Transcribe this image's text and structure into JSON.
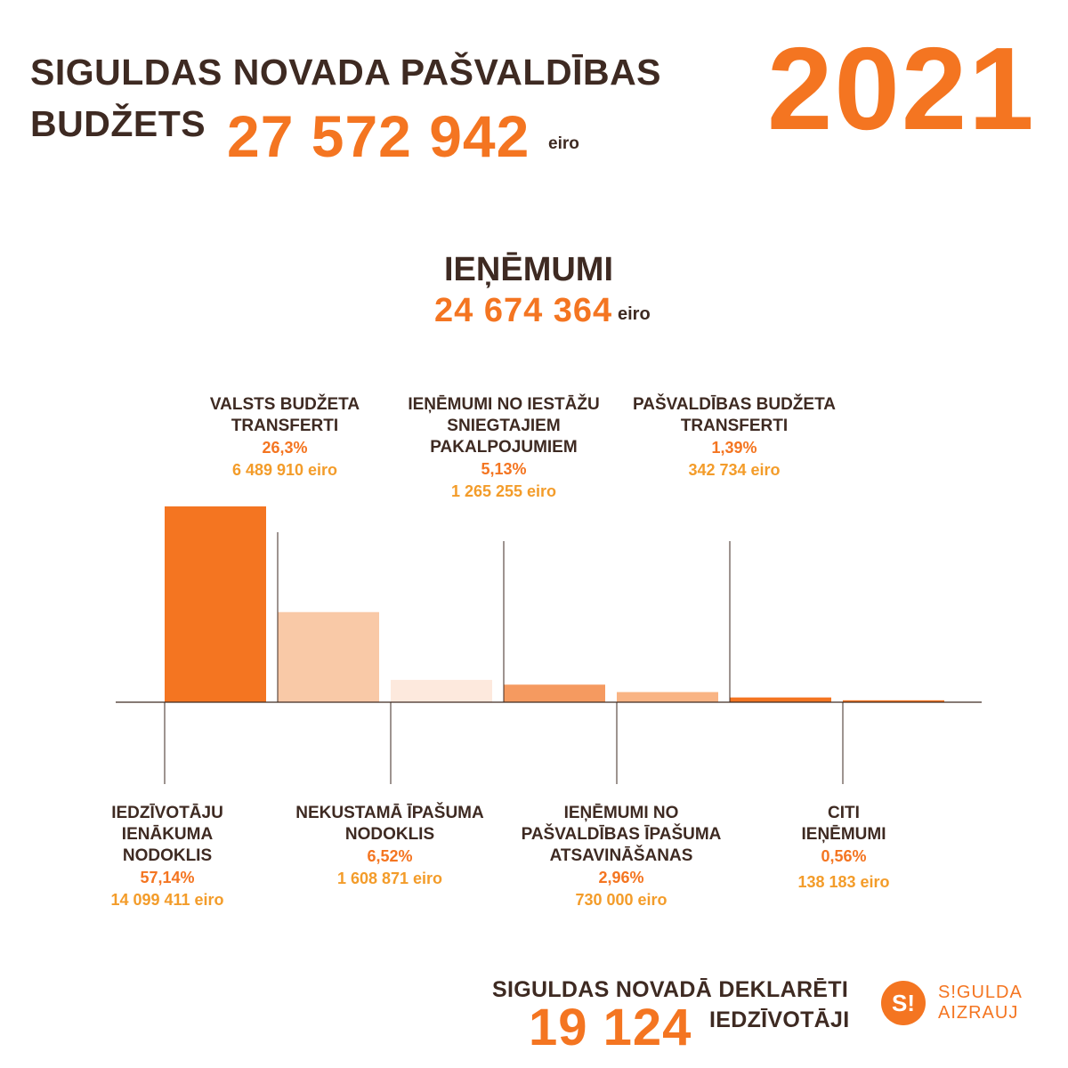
{
  "header": {
    "title_line1": "SIGULDAS NOVADA PAŠVALDĪBAS",
    "title_line2": "BUDŽETS",
    "total": "27 572 942",
    "unit": "eiro",
    "year": "2021"
  },
  "revenue": {
    "title": "IEŅĒMUMI",
    "total": "24 674 364",
    "unit": "eiro"
  },
  "colors": {
    "orange": "#f47521",
    "peach": "#f9c9a7",
    "cream": "#fde9dd",
    "light_orange": "#f59a60",
    "pale_orange": "#f9b484",
    "brown": "#3e2a22",
    "gold": "#f39c2a"
  },
  "chart_data": {
    "type": "bar",
    "categories": [
      "IEDZĪVOTĀJU IENĀKUMA NODOKLIS",
      "VALSTS BUDŽETA TRANSFERTI",
      "NEKUSTAMĀ ĪPAŠUMA NODOKLIS",
      "IEŅĒMUMI NO IESTĀŽU SNIEGTAJIEM PAKALPOJUMIEM",
      "IEŅĒMUMI NO PAŠVALDĪBAS ĪPAŠUMA ATSAVINĀŠANAS",
      "PAŠVALDĪBAS BUDŽETA TRANSFERTI",
      "CITI IEŅĒMUMI"
    ],
    "values": [
      14099411,
      6489910,
      1608871,
      1265255,
      730000,
      342734,
      138183
    ],
    "percents": [
      57.14,
      26.3,
      6.52,
      5.13,
      2.96,
      1.39,
      0.56
    ],
    "bar_colors": [
      "#f47521",
      "#f9c9a7",
      "#fde9dd",
      "#f59a60",
      "#f9b484",
      "#f47521",
      "#f47521"
    ],
    "labels": [
      {
        "name": [
          "IEDZĪVOTĀJU",
          "IENĀKUMA",
          "NODOKLIS"
        ],
        "pct": "57,14%",
        "eur": "14 099 411 eiro"
      },
      {
        "name": [
          "VALSTS BUDŽETA",
          "TRANSFERTI"
        ],
        "pct": "26,3%",
        "eur": "6 489 910 eiro"
      },
      {
        "name": [
          "NEKUSTAMĀ ĪPAŠUMA",
          "NODOKLIS"
        ],
        "pct": "6,52%",
        "eur": "1 608 871 eiro"
      },
      {
        "name": [
          "IEŅĒMUMI NO IESTĀŽU",
          "SNIEGTAJIEM",
          "PAKALPOJUMIEM"
        ],
        "pct": "5,13%",
        "eur": "1 265 255 eiro"
      },
      {
        "name": [
          "IEŅĒMUMI NO",
          "PAŠVALDĪBAS ĪPAŠUMA",
          "ATSAVINĀŠANAS"
        ],
        "pct": "2,96%",
        "eur": "730 000 eiro"
      },
      {
        "name": [
          "PAŠVALDĪBAS BUDŽETA",
          "TRANSFERTI"
        ],
        "pct": "1,39%",
        "eur": "342 734 eiro"
      },
      {
        "name": [
          "CITI",
          "IEŅĒMUMI"
        ],
        "pct": "0,56%",
        "eur": "138 183 eiro"
      }
    ],
    "title": "IEŅĒMUMI",
    "xlabel": "",
    "ylabel": ""
  },
  "footer": {
    "line1": "SIGULDAS NOVADĀ DEKLARĒTI",
    "number": "19 124",
    "line2": "IEDZĪVOTĀJI"
  },
  "logo": {
    "mark": "S!",
    "text_line1": "S!GULDA",
    "text_line2": "AIZRAUJ"
  }
}
